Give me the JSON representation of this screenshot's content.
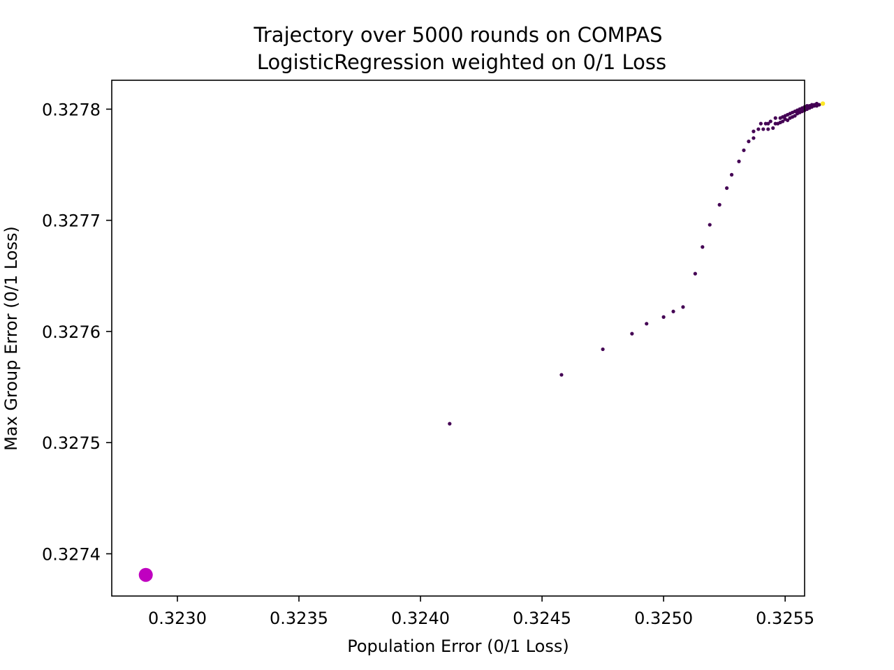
{
  "chart_data": {
    "type": "scatter",
    "title": "Trajectory over 5000 rounds on COMPAS",
    "subtitle": "LogisticRegression weighted on 0/1 Loss",
    "xlabel": "Population Error (0/1 Loss)",
    "ylabel": "Max Group Error (0/1 Loss)",
    "xlim": [
      0.32273,
      0.32558
    ],
    "ylim": [
      0.327362,
      0.327826
    ],
    "xticks": [
      0.323,
      0.3235,
      0.324,
      0.3245,
      0.325,
      0.3255
    ],
    "xtick_labels": [
      "0.3230",
      "0.3235",
      "0.3240",
      "0.3245",
      "0.3250",
      "0.3255"
    ],
    "yticks": [
      0.3274,
      0.3275,
      0.3276,
      0.3277,
      0.3278
    ],
    "ytick_labels": [
      "0.3274",
      "0.3275",
      "0.3276",
      "0.3277",
      "0.3278"
    ],
    "grid": false,
    "colormap": "viridis",
    "series": [
      {
        "color": "#440154",
        "x": [
          0.32412,
          0.32458,
          0.32475,
          0.32487,
          0.32493,
          0.325,
          0.32504,
          0.32508,
          0.32513,
          0.32516,
          0.32519,
          0.32523,
          0.32526,
          0.32528,
          0.32531,
          0.32533,
          0.32535,
          0.32537,
          0.32537,
          0.32539,
          0.3254,
          0.32541,
          0.32542,
          0.32543,
          0.32543,
          0.32544,
          0.32545,
          0.32546,
          0.32546,
          0.32547,
          0.32548,
          0.32548,
          0.32549,
          0.32549,
          0.3255,
          0.3255,
          0.32551,
          0.32551,
          0.32552,
          0.32552,
          0.32553,
          0.32553,
          0.32554,
          0.32554,
          0.32555,
          0.32555,
          0.32556,
          0.32556,
          0.32557,
          0.32557,
          0.32558,
          0.32558,
          0.32559,
          0.32559,
          0.3256,
          0.3256,
          0.32561,
          0.32561,
          0.32562,
          0.32562,
          0.32563,
          0.32563,
          0.32564
        ],
        "y": [
          0.327517,
          0.327561,
          0.327584,
          0.327598,
          0.327607,
          0.327613,
          0.327618,
          0.327622,
          0.327652,
          0.327676,
          0.327696,
          0.327714,
          0.327729,
          0.327741,
          0.327753,
          0.327763,
          0.327771,
          0.32778,
          0.327774,
          0.327782,
          0.327787,
          0.327782,
          0.327787,
          0.327782,
          0.327787,
          0.327789,
          0.327783,
          0.327787,
          0.327792,
          0.327787,
          0.327792,
          0.327788,
          0.327793,
          0.327789,
          0.327791,
          0.327794,
          0.32779,
          0.327795,
          0.327792,
          0.327796,
          0.327793,
          0.327797,
          0.327794,
          0.327798,
          0.327796,
          0.327799,
          0.327797,
          0.3278,
          0.327798,
          0.327801,
          0.327799,
          0.327802,
          0.3278,
          0.327803,
          0.327801,
          0.327803,
          0.327802,
          0.327804,
          0.327803,
          0.327804,
          0.327803,
          0.327805,
          0.327804
        ]
      },
      {
        "color": "#fde725",
        "x": [
          0.325655
        ],
        "y": [
          0.327805
        ]
      },
      {
        "color": "#c000c0",
        "x": [
          0.32287
        ],
        "y": [
          0.327381
        ]
      }
    ]
  }
}
